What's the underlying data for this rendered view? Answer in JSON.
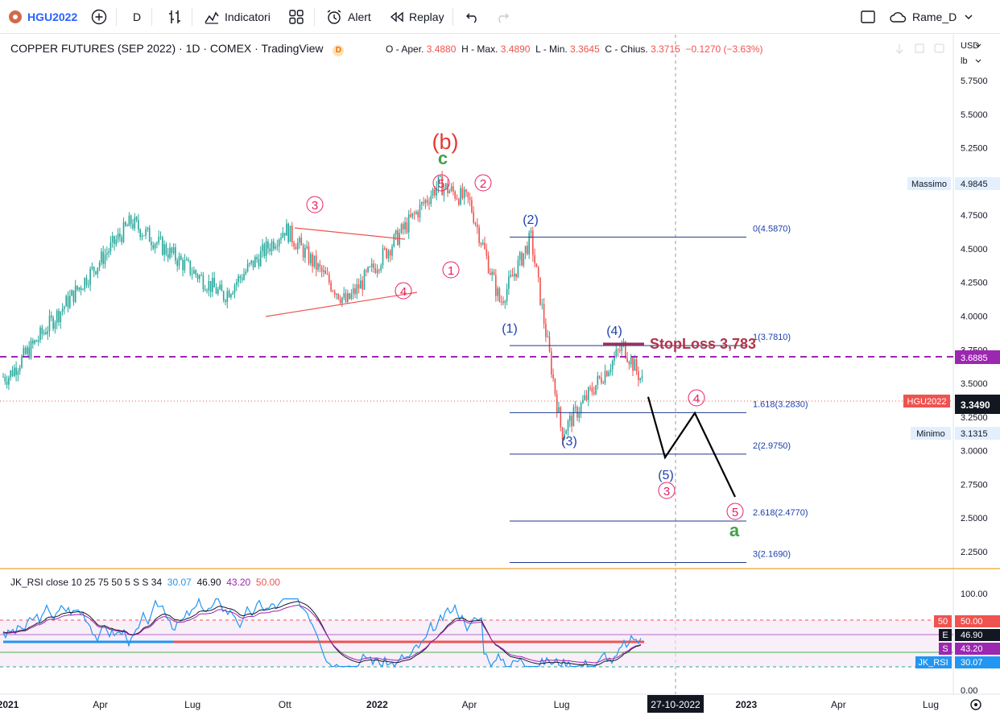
{
  "toolbar": {
    "symbol": "HGU2022",
    "interval": "D",
    "indicators_label": "Indicatori",
    "alert_label": "Alert",
    "replay_label": "Replay",
    "layout_name": "Rame_D"
  },
  "legend": {
    "title": "COPPER FUTURES (SEP 2022) · 1D · COMEX · TradingView",
    "badge": "D",
    "open_label": "O - Aper.",
    "open": "3.4880",
    "high_label": "H - Max.",
    "high": "3.4890",
    "low_label": "L - Min.",
    "low": "3.3645",
    "close_label": "C - Chius.",
    "close": "3.3715",
    "change": "−0.1270 (−3.63%)"
  },
  "price_axis": {
    "currency": "USD",
    "unit": "lb",
    "ticks": [
      "5.7500",
      "5.5000",
      "5.2500",
      "5.0000",
      "4.7500",
      "4.5000",
      "4.2500",
      "4.0000",
      "3.7500",
      "3.5000",
      "3.2500",
      "3.0000",
      "2.7500",
      "2.5000",
      "2.2500"
    ],
    "max_label": "Massimo",
    "max_value": "4.9845",
    "min_label": "Minimo",
    "min_value": "3.1315",
    "dashed_level": "3.6885",
    "symbol_tag": "HGU2022",
    "last_price": "3.3490"
  },
  "time_axis": {
    "labels": [
      "2021",
      "Apr",
      "Lug",
      "Ott",
      "2022",
      "Apr",
      "Lug",
      "2023",
      "Apr",
      "Lug"
    ],
    "cursor_label": "27-10-2022"
  },
  "fib_levels": [
    {
      "label": "0(4.5870)",
      "price": 4.587
    },
    {
      "label": "1(3.7810)",
      "price": 3.781
    },
    {
      "label": "1.618(3.2830)",
      "price": 3.283
    },
    {
      "label": "2(2.9750)",
      "price": 2.975
    },
    {
      "label": "2.618(2.4770)",
      "price": 2.477
    },
    {
      "label": "3(2.1690)",
      "price": 2.169
    }
  ],
  "wave_labels": {
    "b_big": "(b)",
    "c_green": "c",
    "a_green": "a",
    "p3": "3",
    "p5": "5",
    "p2": "2",
    "p1": "1",
    "p4": "4",
    "b2": "(2)",
    "b1": "(1)",
    "b4": "(4)",
    "b3": "(3)",
    "b5": "(5)",
    "f4": "4",
    "f3": "3",
    "f5": "5"
  },
  "stoploss_text": "StopLoss 3,783",
  "rsi": {
    "title": "JK_RSI close 10 25 75 50 5 S S 34",
    "v1": "30.07",
    "v2": "46.90",
    "v3": "43.20",
    "v4": "50.00",
    "ticks": [
      "100.00",
      "0.00"
    ],
    "tag_50": "50",
    "val_50": "50.00",
    "tag_e": "E",
    "val_e": "46.90",
    "tag_s": "S",
    "val_s": "43.20",
    "tag_jk": "JK_RSI",
    "val_jk": "30.07"
  },
  "chart_data": {
    "type": "candlestick",
    "symbol": "HGU2022",
    "y_range": [
      2.05,
      5.9
    ],
    "approx_swings": [
      {
        "date": "2021-01",
        "price": 3.55
      },
      {
        "date": "2021-05",
        "price": 4.7
      },
      {
        "date": "2021-08",
        "price": 4.15
      },
      {
        "date": "2021-10",
        "price": 4.65
      },
      {
        "date": "2021-12",
        "price": 4.1
      },
      {
        "date": "2022-03",
        "price": 4.98
      },
      {
        "date": "2022-04",
        "price": 4.85
      },
      {
        "date": "2022-05",
        "price": 4.1
      },
      {
        "date": "2022-06",
        "price": 4.58
      },
      {
        "date": "2022-07",
        "price": 3.13
      },
      {
        "date": "2022-09",
        "price": 3.78
      },
      {
        "date": "2022-10",
        "price": 3.35
      }
    ],
    "projection": [
      {
        "date": "2022-10",
        "price": 3.4
      },
      {
        "date": "2022-11",
        "price": 2.95
      },
      {
        "date": "2022-12",
        "price": 3.28
      },
      {
        "date": "2023-01",
        "price": 2.65
      }
    ],
    "stoploss": 3.783,
    "dashed_resistance": 3.6885,
    "last_price": 3.349
  }
}
